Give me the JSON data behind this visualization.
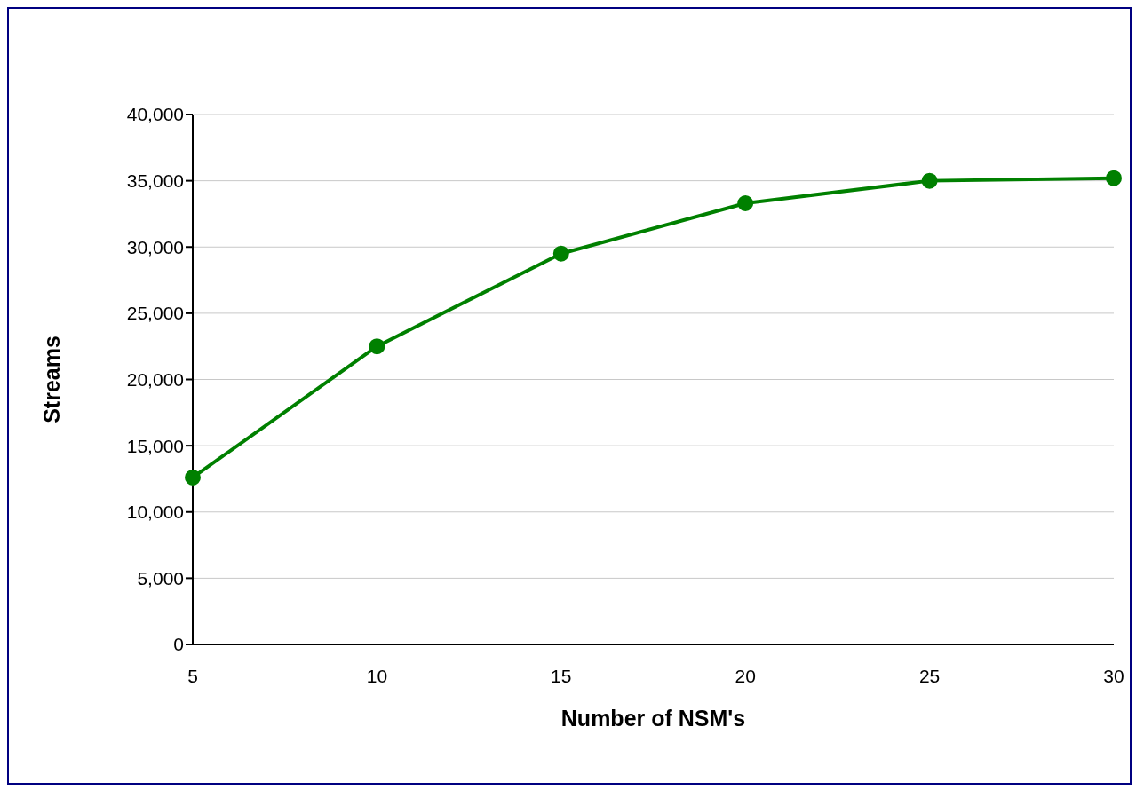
{
  "chart_data": {
    "type": "line",
    "xlabel": "Number of NSM's",
    "ylabel": "Streams",
    "categories": [
      "5",
      "10",
      "15",
      "20",
      "25",
      "30"
    ],
    "series": [
      {
        "color": "#008000",
        "values": [
          12600,
          22500,
          29500,
          33300,
          35000,
          35200
        ]
      }
    ],
    "ylim": [
      0,
      40000
    ],
    "yticks": [
      {
        "value": 0,
        "label": "0"
      },
      {
        "value": 5000,
        "label": "5,000"
      },
      {
        "value": 10000,
        "label": "10,000"
      },
      {
        "value": 15000,
        "label": "15,000"
      },
      {
        "value": 20000,
        "label": "20,000"
      },
      {
        "value": 25000,
        "label": "25,000"
      },
      {
        "value": 30000,
        "label": "30,000"
      },
      {
        "value": 35000,
        "label": "35,000"
      },
      {
        "value": 40000,
        "label": "40,000"
      }
    ],
    "grid": "y",
    "marker": "circle",
    "line_style": "solid"
  }
}
